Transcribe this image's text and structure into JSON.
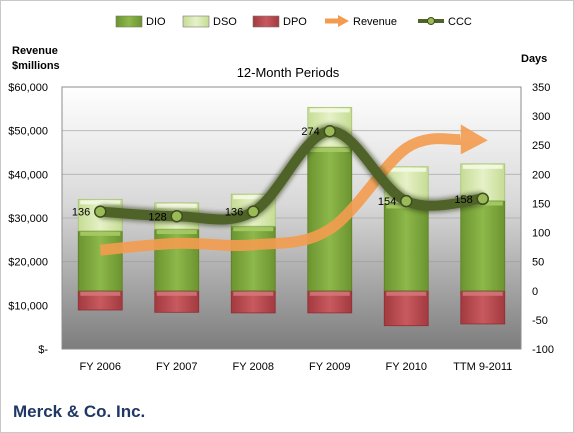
{
  "chart_data": {
    "type": "bar",
    "title": "12-Month Periods",
    "left_axis_label_line1": "Revenue",
    "left_axis_label_line2": "$millions",
    "right_axis_label": "Days",
    "categories": [
      "FY 2006",
      "FY 2007",
      "FY 2008",
      "FY 2009",
      "FY 2010",
      "TTM 9-2011"
    ],
    "left_axis": {
      "min": 0,
      "max": 60000,
      "step": 10000,
      "tick_labels": [
        "$-",
        "$10,000",
        "$20,000",
        "$30,000",
        "$40,000",
        "$50,000",
        "$60,000"
      ]
    },
    "right_axis": {
      "min": -100,
      "max": 350,
      "step": 50
    },
    "series": [
      {
        "name": "DIO",
        "type": "bar",
        "axis": "right",
        "color": "#7aa33a",
        "values": [
          103,
          106,
          111,
          247,
          150,
          155
        ]
      },
      {
        "name": "DSO",
        "type": "bar",
        "axis": "right",
        "color": "#d8e8b0",
        "values": [
          54,
          45,
          55,
          68,
          63,
          63
        ]
      },
      {
        "name": "DPO",
        "type": "bar",
        "axis": "right",
        "color": "#b8464b",
        "values": [
          -33,
          -37,
          -38,
          -38,
          -60,
          -57
        ]
      },
      {
        "name": "Revenue",
        "type": "line",
        "axis": "left",
        "color": "#f39c4f",
        "values": [
          22636,
          24198,
          23850,
          27428,
          45987,
          48000
        ]
      },
      {
        "name": "CCC",
        "type": "line",
        "axis": "right",
        "color": "#4f6228",
        "values": [
          136,
          128,
          136,
          274,
          154,
          158
        ]
      }
    ],
    "data_labels": [
      "136",
      "128",
      "136",
      "274",
      "154",
      "158"
    ],
    "legend_position": "top",
    "grid": true
  },
  "footer": {
    "company": "Merck & Co. Inc."
  }
}
